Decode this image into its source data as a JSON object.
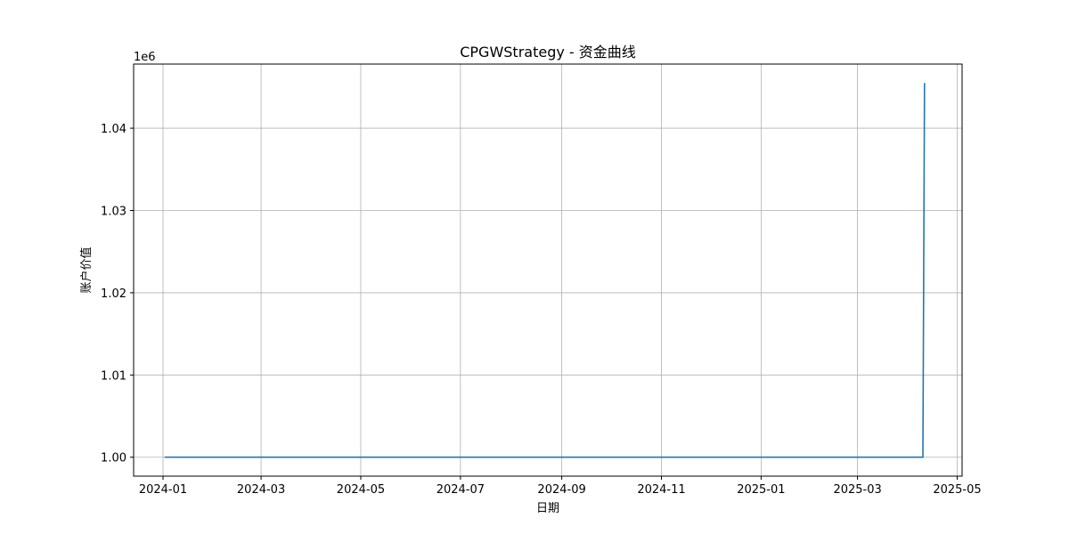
{
  "chart_data": {
    "type": "line",
    "title": "CPGWStrategy - 资金曲线",
    "xlabel": "日期",
    "ylabel": "账户价值",
    "y_offset_label": "1e6",
    "x_tick_labels": [
      "2024-01",
      "2024-03",
      "2024-05",
      "2024-07",
      "2024-09",
      "2024-11",
      "2025-01",
      "2025-03",
      "2025-05"
    ],
    "x_ticks": [
      "2024-01-01",
      "2024-03-01",
      "2024-05-01",
      "2024-07-01",
      "2024-09-01",
      "2024-11-01",
      "2025-01-01",
      "2025-03-01",
      "2025-05-01"
    ],
    "xlim": [
      "2023-12-14",
      "2025-05-04"
    ],
    "y_tick_labels": [
      "1.00",
      "1.01",
      "1.02",
      "1.03",
      "1.04"
    ],
    "y_ticks": [
      1000000,
      1010000,
      1020000,
      1030000,
      1040000
    ],
    "ylim": [
      997700,
      1047800
    ],
    "grid": true,
    "series": [
      {
        "color": "#1f77b4",
        "x": [
          "2024-01-02",
          "2025-04-10",
          "2025-04-11"
        ],
        "y": [
          1000000,
          1000000,
          1045500
        ]
      }
    ]
  }
}
